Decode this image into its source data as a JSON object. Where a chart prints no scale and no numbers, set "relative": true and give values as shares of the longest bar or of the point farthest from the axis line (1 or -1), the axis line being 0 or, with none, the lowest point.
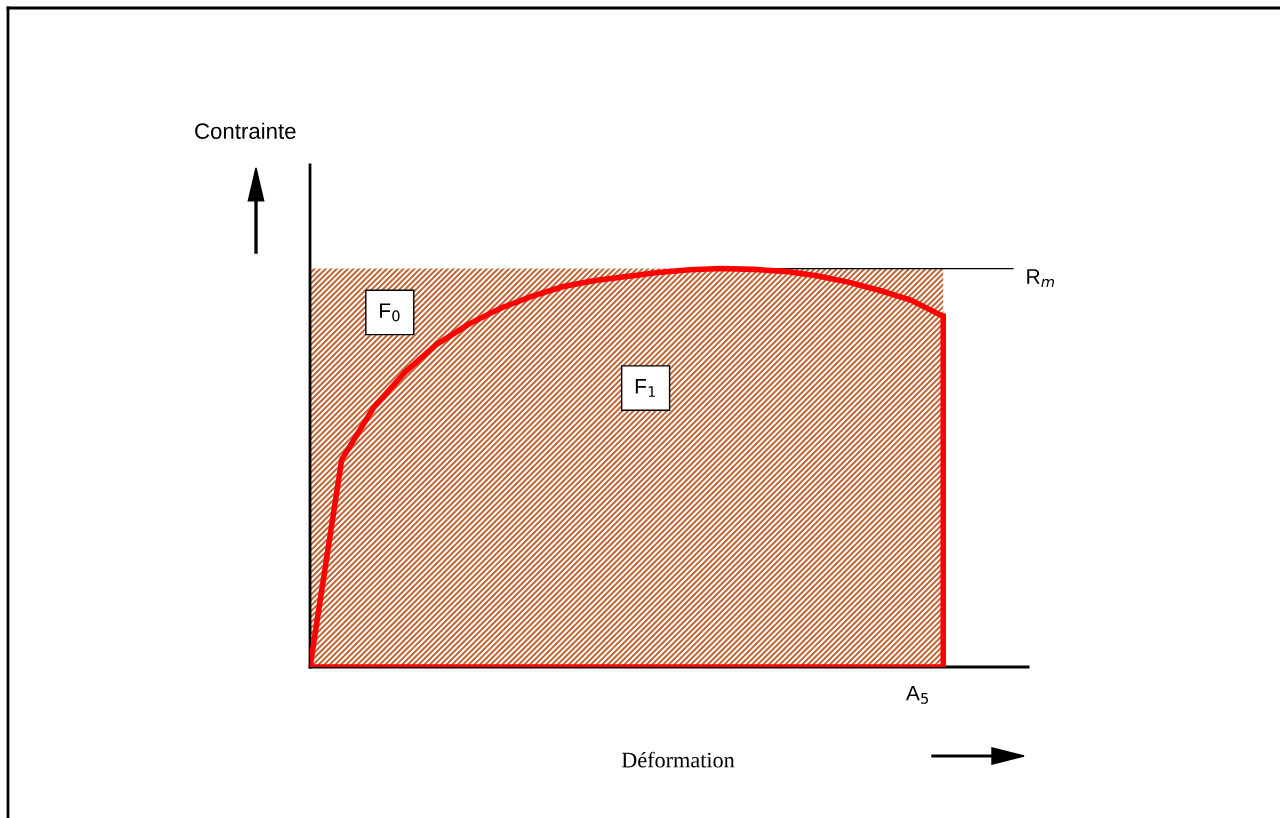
{
  "chart_data": {
    "type": "line",
    "relative": true,
    "xlabel": "Déformation",
    "categories": [
      null,
      null,
      null,
      null,
      null,
      null,
      null,
      null,
      null,
      null,
      null,
      null,
      null,
      null,
      null,
      null,
      null,
      null,
      null,
      null,
      null
    ],
    "series": [
      {
        "color": "#ff0000",
        "values": [
          0,
          0.52,
          0.65,
          0.74,
          0.81,
          0.86,
          0.9,
          0.93,
          0.955,
          0.97,
          0.98,
          0.99,
          0.997,
          1.0,
          0.998,
          0.993,
          0.982,
          0.966,
          0.945,
          0.92,
          0.88
        ]
      }
    ],
    "ref_lines": [
      {
        "axis": "y",
        "value": 1,
        "label": "R$_{m}$",
        "color": "#000000"
      }
    ],
    "annotations": [
      "A$_{5}$",
      "F$_{0}$",
      "F$_{1}$",
      "Contrainte"
    ],
    "legend": false,
    "tick_labels": false,
    "marker": "none",
    "line_style": "solid"
  }
}
